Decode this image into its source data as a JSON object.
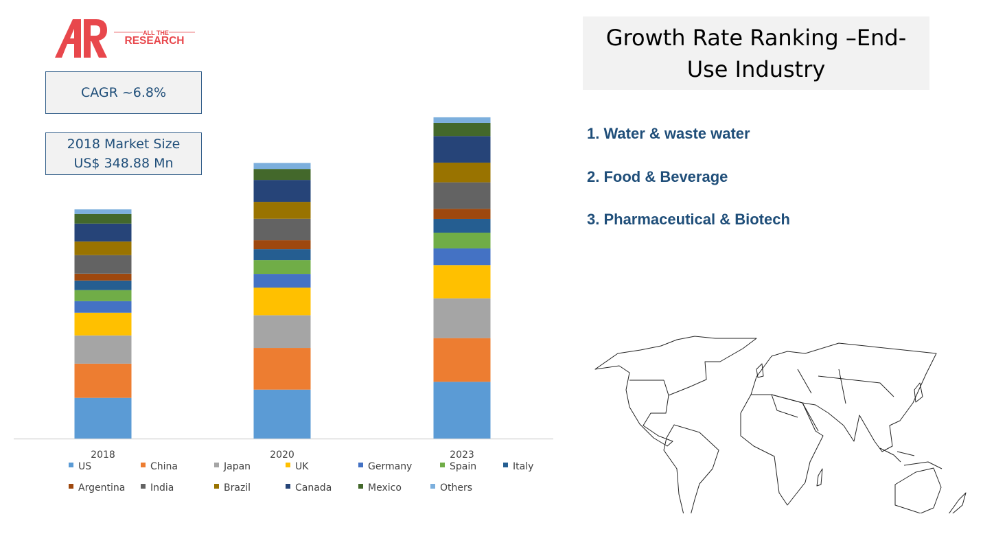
{
  "logo": {
    "mark": "AR",
    "line1": "ALL THE",
    "line2": "RESEARCH",
    "color": "#e8474c"
  },
  "kpis": {
    "cagr": "CAGR ~6.8%",
    "market_size_line1": "2018 Market Size",
    "market_size_line2": "US$ 348.88 Mn"
  },
  "ranking": {
    "title": "Growth Rate Ranking –End-Use Industry",
    "items": [
      "1. Water & waste water",
      "2. Food & Beverage",
      "3. Pharmaceutical & Biotech"
    ]
  },
  "map": {
    "icon": "world-map-outline"
  },
  "chart_data": {
    "type": "bar",
    "stacked": true,
    "unit": "US$ Mn",
    "categories": [
      "2018",
      "2020",
      "2023"
    ],
    "legend_position": "bottom",
    "grid": false,
    "series": [
      {
        "name": "US",
        "color": "#5b9bd5",
        "values": [
          62.0,
          74.5,
          86.4
        ]
      },
      {
        "name": "China",
        "color": "#ed7d31",
        "values": [
          52.0,
          63.4,
          66.5
        ]
      },
      {
        "name": "Japan",
        "color": "#a5a5a5",
        "values": [
          43.0,
          49.8,
          60.6
        ]
      },
      {
        "name": "UK",
        "color": "#ffc000",
        "values": [
          34.5,
          42.1,
          50.6
        ]
      },
      {
        "name": "Germany",
        "color": "#4472c4",
        "values": [
          17.8,
          20.9,
          25.4
        ]
      },
      {
        "name": "Spain",
        "color": "#70ad47",
        "values": [
          16.7,
          20.9,
          24.0
        ]
      },
      {
        "name": "Italy",
        "color": "#255e91",
        "values": [
          14.6,
          16.7,
          20.9
        ]
      },
      {
        "name": "Argentina",
        "color": "#9e480e",
        "values": [
          10.4,
          13.6,
          15.4
        ]
      },
      {
        "name": "India",
        "color": "#636363",
        "values": [
          28.2,
          32.7,
          40.3
        ]
      },
      {
        "name": "Brazil",
        "color": "#997300",
        "values": [
          20.9,
          25.8,
          30.0
        ]
      },
      {
        "name": "Canada",
        "color": "#264478",
        "values": [
          27.2,
          33.4,
          40.4
        ]
      },
      {
        "name": "Mexico",
        "color": "#43682b",
        "values": [
          14.6,
          16.7,
          20.2
        ]
      },
      {
        "name": "Others",
        "color": "#7cafdd",
        "values": [
          7.0,
          9.1,
          8.4
        ]
      }
    ]
  }
}
